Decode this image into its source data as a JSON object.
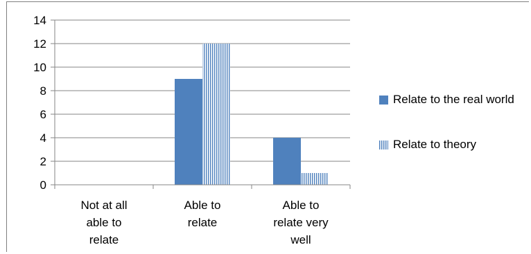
{
  "chart_data": {
    "type": "bar",
    "categories": [
      "Not at all able to relate",
      "Able to relate",
      "Able to relate very well"
    ],
    "category_lines": [
      [
        "Not at all",
        "able to",
        "relate"
      ],
      [
        "Able to",
        "relate"
      ],
      [
        "Able to",
        "relate very",
        "well"
      ]
    ],
    "series": [
      {
        "name": "Relate to the real world",
        "values": [
          0,
          9,
          4
        ],
        "fill": "solid",
        "color": "#4f81bd"
      },
      {
        "name": "Relate to theory",
        "values": [
          0,
          12,
          1
        ],
        "fill": "vertical-stripes",
        "color": "#4f81bd"
      }
    ],
    "y_ticks": [
      "0",
      "2",
      "4",
      "6",
      "8",
      "10",
      "12",
      "14"
    ],
    "ylim": [
      0,
      14
    ],
    "grid": true,
    "legend_position": "right",
    "title": "",
    "xlabel": "",
    "ylabel": ""
  }
}
